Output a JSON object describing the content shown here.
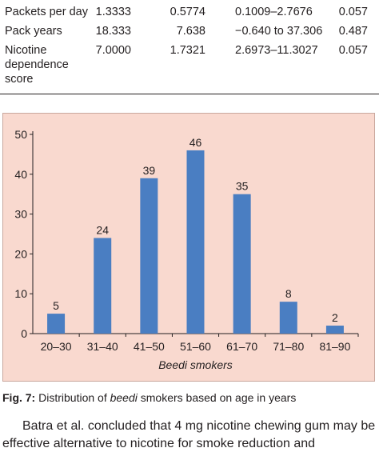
{
  "table": {
    "rows": [
      {
        "label": "Packets per day",
        "mean": "1.3333",
        "sd": "0.5774",
        "ci": "0.1009–2.7676",
        "p": "0.057"
      },
      {
        "label": "Pack years",
        "mean": "18.333",
        "sd": "7.638",
        "ci": "−0.640 to 37.306",
        "p": "0.487"
      },
      {
        "label": "Nicotine dependence score",
        "label_lines": [
          "Nicotine",
          "dependence",
          "score"
        ],
        "mean": "7.0000",
        "sd": "1.7321",
        "ci": "2.6973–11.3027",
        "p": "0.057"
      }
    ]
  },
  "chart_data": {
    "type": "bar",
    "categories": [
      "20–30",
      "31–40",
      "41–50",
      "51–60",
      "61–70",
      "71–80",
      "81–90"
    ],
    "values": [
      5,
      24,
      39,
      46,
      35,
      8,
      2
    ],
    "data_labels": [
      "5",
      "24",
      "39",
      "46",
      "35",
      "8",
      "2"
    ],
    "xlabel": "Beedi smokers",
    "ylabel": "",
    "ylim": [
      0,
      50
    ],
    "yticks": [
      0,
      10,
      20,
      30,
      40,
      50
    ],
    "grid": false,
    "bar_color": "#4a7ec2",
    "background": "#f9d9cf"
  },
  "caption": {
    "label": "Fig. 7:",
    "text_before": " Distribution of ",
    "italic": "beedi",
    "text_after": " smokers based on age in years"
  },
  "body": {
    "line1": "Batra et al. concluded that 4 mg nicotine chewing gum may be",
    "line2": "effective alternative to nicotine for smoke reduction and"
  }
}
